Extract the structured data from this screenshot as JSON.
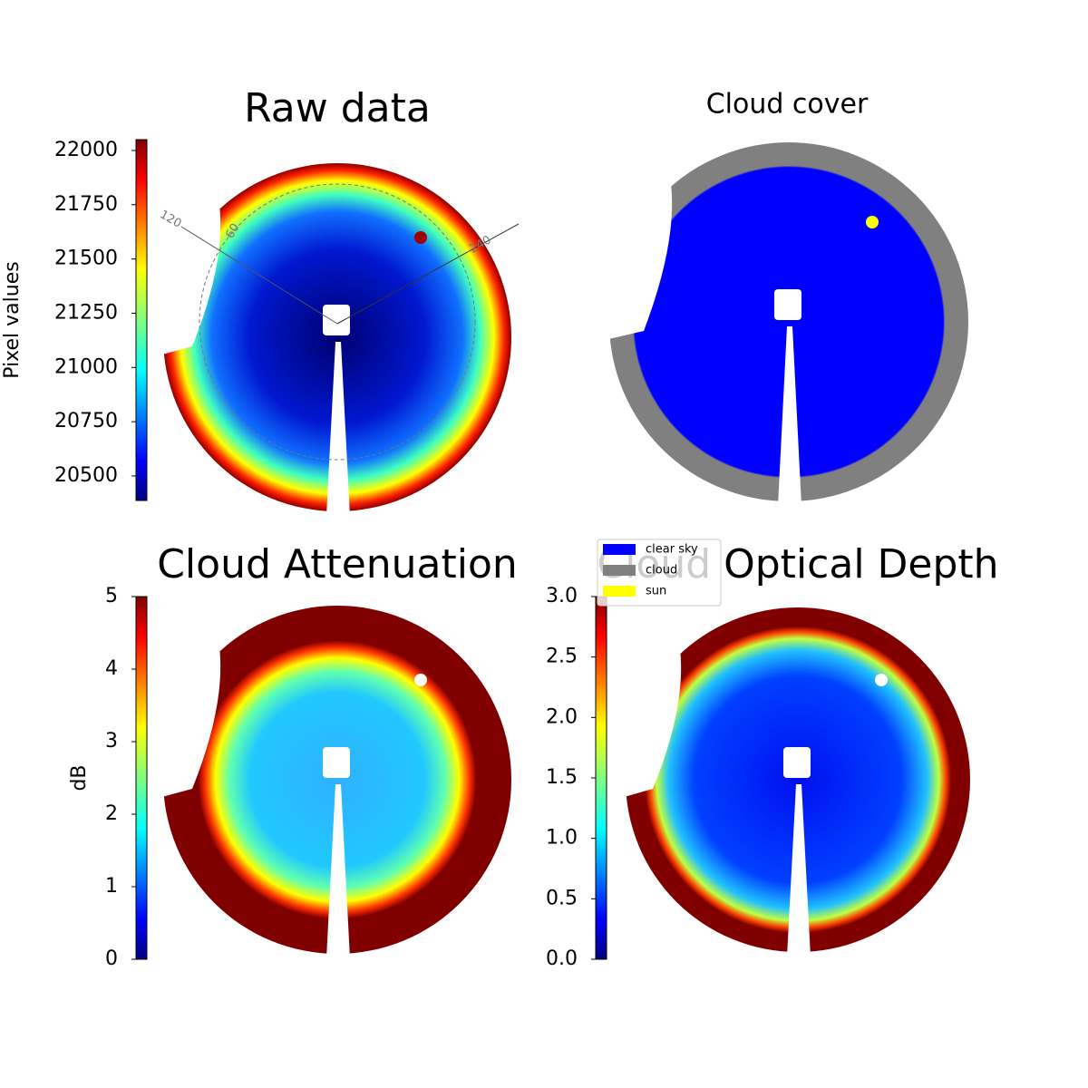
{
  "chart_data": [
    {
      "type": "image",
      "title": "Raw data",
      "colormap": "jet",
      "colorbar_label": "Pixel values",
      "ylim": [
        20387,
        22050
      ],
      "yticks": [
        20500,
        20750,
        21000,
        21250,
        21500,
        21750,
        22000
      ],
      "annotations": [
        "120",
        "60",
        "240"
      ]
    },
    {
      "type": "image",
      "title": "Cloud cover",
      "legend": [
        {
          "name": "clear sky",
          "color": "#0000ff"
        },
        {
          "name": "cloud",
          "color": "#808080"
        },
        {
          "name": "sun",
          "color": "#ffff00"
        }
      ]
    },
    {
      "type": "image",
      "title": "Cloud Attenuation",
      "colormap": "jet",
      "colorbar_label": "dB",
      "ylim": [
        0,
        5
      ],
      "yticks": [
        0,
        1,
        2,
        3,
        4,
        5
      ]
    },
    {
      "type": "image",
      "title": "Cloud Optical Depth",
      "colormap": "jet",
      "ylim": [
        0,
        3
      ],
      "yticks": [
        {
          "value": 0,
          "label": "0.0"
        },
        0.5,
        {
          "value": 1,
          "label": "1.0"
        },
        1.5,
        {
          "value": 2,
          "label": "2.0"
        },
        2.5,
        {
          "value": 3,
          "label": "3.0"
        }
      ]
    }
  ]
}
